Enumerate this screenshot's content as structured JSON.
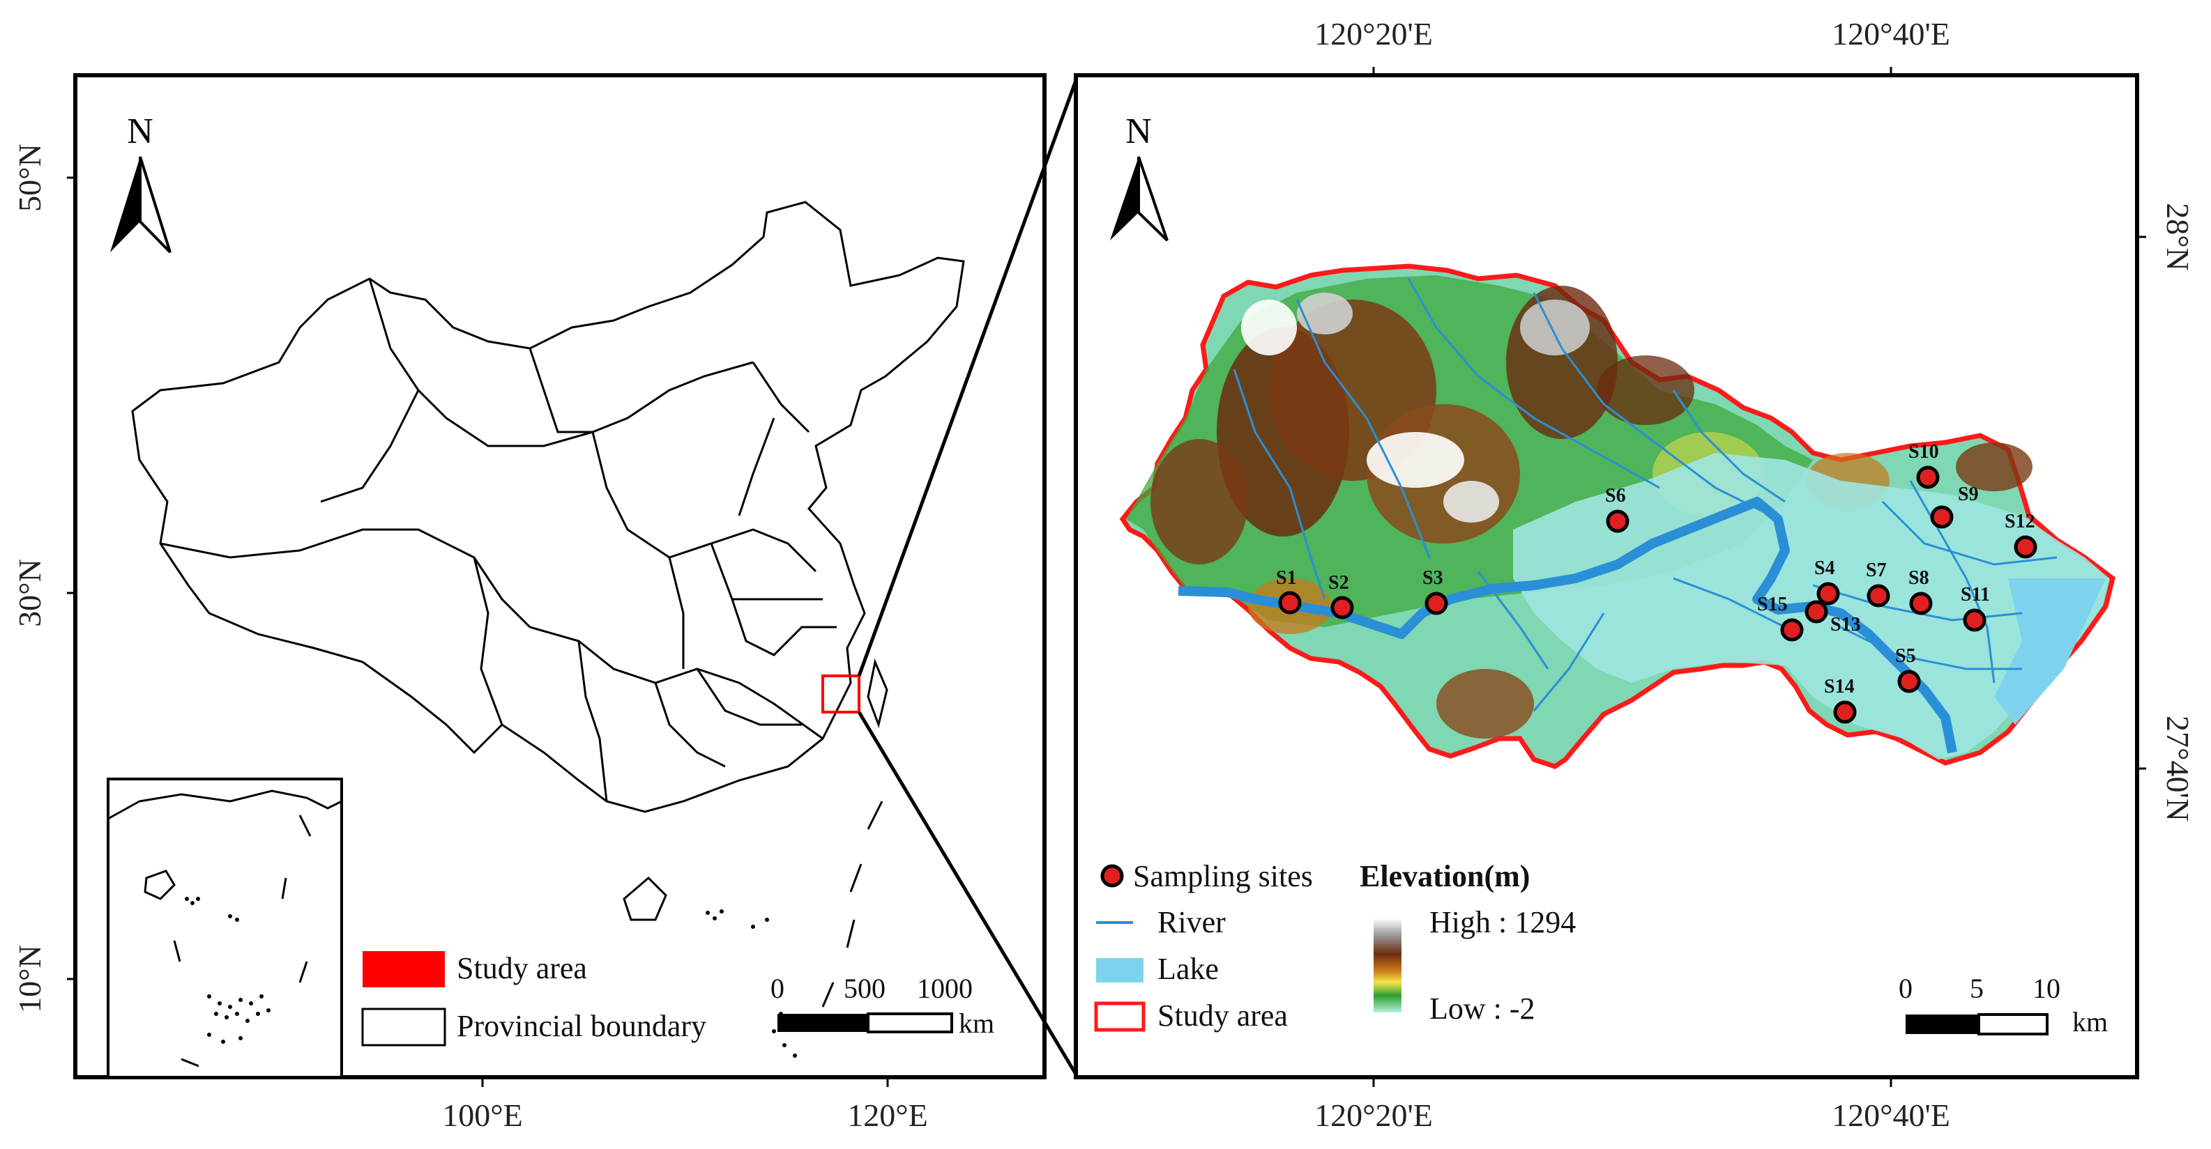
{
  "left_panel": {
    "north_label": "N",
    "lat_labels": [
      "50°N",
      "30°N",
      "10°N"
    ],
    "lon_labels": [
      "100°E",
      "120°E"
    ],
    "legend": {
      "study_area": "Study area",
      "provincial_boundary": "Provincial boundary",
      "study_area_color": "#ff0000"
    },
    "scale": {
      "ticks": [
        "0",
        "500",
        "1000"
      ],
      "unit": "km"
    }
  },
  "right_panel": {
    "north_label": "N",
    "top_lon_labels": [
      "120°20'E",
      "120°40'E"
    ],
    "bottom_lon_labels": [
      "120°20'E",
      "120°40'E"
    ],
    "right_lat_labels": [
      "28°N",
      "27°40'N"
    ],
    "sites": [
      "S1",
      "S2",
      "S3",
      "S4",
      "S5",
      "S6",
      "S7",
      "S8",
      "S9",
      "S10",
      "S11",
      "S12",
      "S13",
      "S14",
      "S15"
    ],
    "legend": {
      "sampling_sites": "Sampling sites",
      "elevation_title": "Elevation(m)",
      "river": "River",
      "lake": "Lake",
      "study_area": "Study area",
      "high": "High : 1294",
      "low": "Low : -2",
      "river_color": "#2a8fd6",
      "lake_color": "#7dd3ee",
      "site_color": "#e02020"
    },
    "scale": {
      "ticks": [
        "0",
        "5",
        "10"
      ],
      "unit": "km"
    }
  }
}
